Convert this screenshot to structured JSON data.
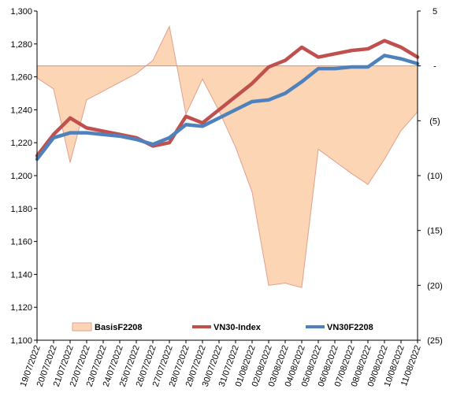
{
  "chart_data": {
    "type": "line",
    "categories": [
      "19/07/2022",
      "20/07/2022",
      "21/07/2022",
      "22/07/2022",
      "23/07/2022",
      "24/07/2022",
      "25/07/2022",
      "26/07/2022",
      "27/07/2022",
      "28/07/2022",
      "29/07/2022",
      "30/07/2022",
      "31/07/2022",
      "01/08/2022",
      "02/08/2022",
      "03/08/2022",
      "04/08/2022",
      "05/08/2022",
      "06/08/2022",
      "07/08/2022",
      "08/08/2022",
      "09/08/2022",
      "10/08/2022",
      "11/08/2022"
    ],
    "left_axis": {
      "ylim": [
        1100,
        1300
      ],
      "ticks": [
        "1,100",
        "1,120",
        "1,140",
        "1,160",
        "1,180",
        "1,200",
        "1,220",
        "1,240",
        "1,260",
        "1,280",
        "1,300"
      ],
      "tick_values": [
        1100,
        1120,
        1140,
        1160,
        1180,
        1200,
        1220,
        1240,
        1260,
        1280,
        1300
      ]
    },
    "right_axis": {
      "ylim": [
        -25,
        5
      ],
      "ticks": [
        "(25)",
        "(20)",
        "(15)",
        "(10)",
        "(5)",
        "-",
        "5"
      ],
      "tick_values": [
        -25,
        -20,
        -15,
        -10,
        -5,
        0,
        5
      ]
    },
    "series": [
      {
        "name": "BasisF2208",
        "type": "area",
        "axis": "right",
        "color": "#fcd5b4",
        "edge_color": "#e0a090",
        "values": [
          -1.1,
          -2.1,
          -8.8,
          -3.1,
          -2.3,
          -1.5,
          -0.7,
          0.5,
          3.6,
          -4.4,
          -1.2,
          -4.1,
          -7.4,
          -11.5,
          -20.0,
          -19.8,
          -20.2,
          -7.6,
          -8.7,
          -9.8,
          -10.8,
          -8.5,
          -5.9,
          -4.2
        ]
      },
      {
        "name": "VN30-Index",
        "type": "line",
        "axis": "left",
        "color": "#c0504d",
        "values": [
          1212,
          1225,
          1235,
          1229,
          1227,
          1225,
          1223,
          1218,
          1220,
          1236,
          1232,
          1240,
          1248,
          1256,
          1266,
          1270,
          1278,
          1272,
          1274,
          1276,
          1277,
          1282,
          1278,
          1272
        ]
      },
      {
        "name": "VN30F2208",
        "type": "line",
        "axis": "left",
        "color": "#4f81bd",
        "values": [
          1210,
          1223,
          1226,
          1226,
          1225,
          1224,
          1222,
          1219,
          1223,
          1231,
          1230,
          1235,
          1240,
          1245,
          1246,
          1250,
          1257,
          1265,
          1265,
          1266,
          1266,
          1273,
          1271,
          1268
        ]
      }
    ],
    "legend_position": "inside-bottom",
    "grid": false
  }
}
